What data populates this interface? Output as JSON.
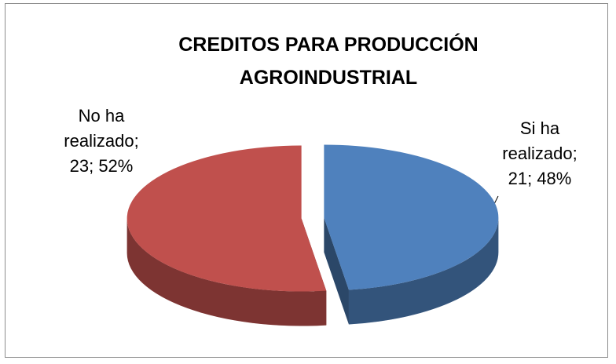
{
  "chart_data": {
    "type": "pie3d",
    "title": "CREDITOS PARA PRODUCCIÓN AGROINDUSTRIAL",
    "labels": [
      "Si ha realizado; 21; 48%",
      "No ha realizado; 23; 52%"
    ],
    "values": [
      21,
      23
    ],
    "colors": [
      "#4f81bd",
      "#c0504d"
    ]
  }
}
